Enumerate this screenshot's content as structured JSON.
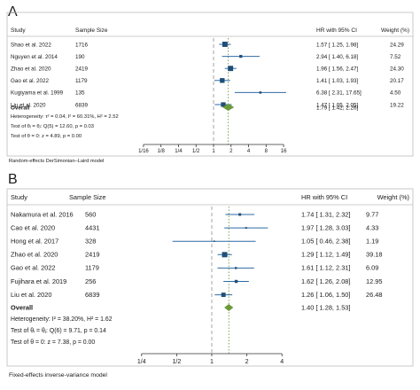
{
  "colors": {
    "marker": "#1f4e79",
    "ci_line": "#2f6aa3",
    "overall": "#6b9a3a",
    "null_line": "#9a9a9a",
    "overall_line": "#6b9a3a"
  },
  "panels": [
    {
      "letter": "A",
      "header": {
        "study": "Study",
        "sample": "Sample Size",
        "hr": "HR with 95% CI",
        "weight": "Weight (%)"
      },
      "footer": "Random-effects DerSimonian–Laird model",
      "heterogeneity": [
        "Heterogeneity: τ² = 0.04, I² = 60.31%, H² = 2.52",
        "Test of θᵢ = θⱼ: Q(5) = 12.60, p = 0.03",
        "Test of θ = 0: z = 4.89, p = 0.00"
      ],
      "overall_label": "Overall",
      "axis_ticks": [
        "1/16",
        "1/8",
        "1/4",
        "1/2",
        "1",
        "2",
        "4",
        "8",
        "16"
      ]
    },
    {
      "letter": "B",
      "header": {
        "study": "Study",
        "sample": "Sample Size",
        "hr": "HR with 95% CI",
        "weight": "Weight (%)"
      },
      "footer": "Fixed-effects inverse-variance model",
      "heterogeneity": [
        "Heterogeneity: I² = 38.20%, H² = 1.62",
        "Test of θᵢ = θⱼ: Q(6) = 9.71, p = 0.14",
        "Test of θ = 0: z = 7.38, p = 0.00"
      ],
      "overall_label": "Overall",
      "axis_ticks": [
        "1/4",
        "1/2",
        "1",
        "2",
        "4"
      ]
    }
  ],
  "chart_data": [
    {
      "type": "forest",
      "scale": "log2",
      "xlim": [
        0.0625,
        16
      ],
      "rows": [
        {
          "study": "Shao et al. 2022",
          "sample": "1716",
          "hr": 1.57,
          "lo": 1.25,
          "hi": 1.98,
          "hr_text": "1.57 [ 1.25,    1.98]",
          "weight": "24.29"
        },
        {
          "study": "Nguyen et al. 2014",
          "sample": "190",
          "hr": 2.94,
          "lo": 1.4,
          "hi": 6.18,
          "hr_text": "2.94 [ 1.40,    6.18]",
          "weight": "7.52"
        },
        {
          "study": "Zhao et al. 2020",
          "sample": "2419",
          "hr": 1.96,
          "lo": 1.56,
          "hi": 2.47,
          "hr_text": "1.96 [ 1.56,    2.47]",
          "weight": "24.30"
        },
        {
          "study": "Gao et al. 2022",
          "sample": "1179",
          "hr": 1.41,
          "lo": 1.03,
          "hi": 1.93,
          "hr_text": "1.41 [ 1.03,    1.93]",
          "weight": "20.17"
        },
        {
          "study": "Kugiyama et al. 1999",
          "sample": "135",
          "hr": 6.38,
          "lo": 2.31,
          "hi": 17.65,
          "hr_text": "6.38 [ 2.31,  17.65]",
          "weight": "4.50"
        },
        {
          "study": "Liu et al. 2020",
          "sample": "6839",
          "hr": 1.47,
          "lo": 1.05,
          "hi": 2.05,
          "hr_text": "1.47 [ 1.05,    2.05]",
          "weight": "19.22"
        }
      ],
      "overall": {
        "hr": 1.79,
        "lo": 1.42,
        "hi": 2.26,
        "hr_text": "1.79 [ 1.42,    2.26]"
      }
    },
    {
      "type": "forest",
      "scale": "log2",
      "xlim": [
        0.177,
        5.66
      ],
      "rows": [
        {
          "study": "Nakamura et al. 2016",
          "sample": "560",
          "hr": 1.74,
          "lo": 1.31,
          "hi": 2.32,
          "hr_text": "1.74 [ 1.31,  2.32]",
          "weight": "9.77"
        },
        {
          "study": "Cao et al. 2020",
          "sample": "4431",
          "hr": 1.97,
          "lo": 1.28,
          "hi": 3.03,
          "hr_text": "1.97 [ 1.28,  3.03]",
          "weight": "4.33"
        },
        {
          "study": "Hong et al. 2017",
          "sample": "328",
          "hr": 1.05,
          "lo": 0.46,
          "hi": 2.38,
          "hr_text": "1.05 [ 0.46,  2.38]",
          "weight": "1.19"
        },
        {
          "study": "Zhao et al. 2020",
          "sample": "2419",
          "hr": 1.29,
          "lo": 1.12,
          "hi": 1.49,
          "hr_text": "1.29 [ 1.12,  1.49]",
          "weight": "39.18"
        },
        {
          "study": "Gao et al. 2022",
          "sample": "1179",
          "hr": 1.61,
          "lo": 1.12,
          "hi": 2.31,
          "hr_text": "1.61 [ 1.12,  2.31]",
          "weight": "6.09"
        },
        {
          "study": "Fujihara et al. 2019",
          "sample": "256",
          "hr": 1.62,
          "lo": 1.26,
          "hi": 2.08,
          "hr_text": "1.62 [ 1.26,  2.08]",
          "weight": "12.95"
        },
        {
          "study": "Liu et al. 2020",
          "sample": "6839",
          "hr": 1.26,
          "lo": 1.06,
          "hi": 1.5,
          "hr_text": "1.26 [ 1.06,  1.50]",
          "weight": "26.48"
        }
      ],
      "overall": {
        "hr": 1.4,
        "lo": 1.28,
        "hi": 1.53,
        "hr_text": "1.40 [ 1.28,  1.53]"
      }
    }
  ]
}
